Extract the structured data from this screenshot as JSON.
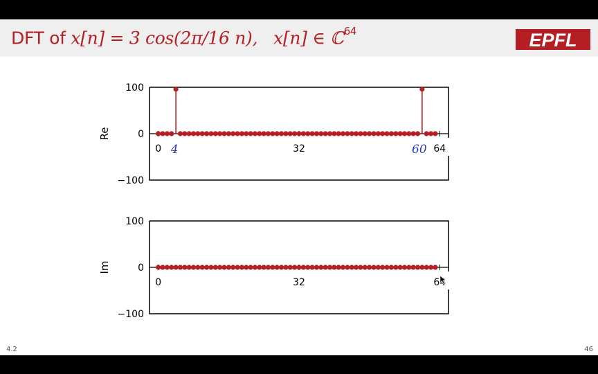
{
  "slide": {
    "title_prefix": "DFT of ",
    "title_signal": "x[n] = 3 cos(2π/16 n),",
    "title_domain_a": "x[n] ∈ ℂ",
    "title_domain_sup": "64",
    "footer_left": "4.2",
    "footer_right": "46",
    "logo_text": "EPFL"
  },
  "colors": {
    "accent": "#b51f24",
    "title_bar": "#efefef",
    "annotation": "#2b3fb5"
  },
  "chart_data": [
    {
      "type": "stem",
      "name": "Re",
      "ylabel": "Re",
      "xlim": [
        -2,
        66
      ],
      "ylim": [
        -100,
        100
      ],
      "yticks": [
        "100",
        "0",
        "−100"
      ],
      "xticks": [
        "0",
        "32",
        "64"
      ],
      "n": [
        0,
        1,
        2,
        3,
        4,
        5,
        6,
        7,
        8,
        9,
        10,
        11,
        12,
        13,
        14,
        15,
        16,
        17,
        18,
        19,
        20,
        21,
        22,
        23,
        24,
        25,
        26,
        27,
        28,
        29,
        30,
        31,
        32,
        33,
        34,
        35,
        36,
        37,
        38,
        39,
        40,
        41,
        42,
        43,
        44,
        45,
        46,
        47,
        48,
        49,
        50,
        51,
        52,
        53,
        54,
        55,
        56,
        57,
        58,
        59,
        60,
        61,
        62,
        63
      ],
      "values": [
        0,
        0,
        0,
        0,
        96,
        0,
        0,
        0,
        0,
        0,
        0,
        0,
        0,
        0,
        0,
        0,
        0,
        0,
        0,
        0,
        0,
        0,
        0,
        0,
        0,
        0,
        0,
        0,
        0,
        0,
        0,
        0,
        0,
        0,
        0,
        0,
        0,
        0,
        0,
        0,
        0,
        0,
        0,
        0,
        0,
        0,
        0,
        0,
        0,
        0,
        0,
        0,
        0,
        0,
        0,
        0,
        0,
        0,
        0,
        0,
        96,
        0,
        0,
        0
      ],
      "annotations": [
        "4",
        "60"
      ]
    },
    {
      "type": "stem",
      "name": "Im",
      "ylabel": "Im",
      "xlim": [
        -2,
        66
      ],
      "ylim": [
        -100,
        100
      ],
      "yticks": [
        "100",
        "0",
        "−100"
      ],
      "xticks": [
        "0",
        "32",
        "64"
      ],
      "n": [
        0,
        1,
        2,
        3,
        4,
        5,
        6,
        7,
        8,
        9,
        10,
        11,
        12,
        13,
        14,
        15,
        16,
        17,
        18,
        19,
        20,
        21,
        22,
        23,
        24,
        25,
        26,
        27,
        28,
        29,
        30,
        31,
        32,
        33,
        34,
        35,
        36,
        37,
        38,
        39,
        40,
        41,
        42,
        43,
        44,
        45,
        46,
        47,
        48,
        49,
        50,
        51,
        52,
        53,
        54,
        55,
        56,
        57,
        58,
        59,
        60,
        61,
        62,
        63
      ],
      "values": [
        0,
        0,
        0,
        0,
        0,
        0,
        0,
        0,
        0,
        0,
        0,
        0,
        0,
        0,
        0,
        0,
        0,
        0,
        0,
        0,
        0,
        0,
        0,
        0,
        0,
        0,
        0,
        0,
        0,
        0,
        0,
        0,
        0,
        0,
        0,
        0,
        0,
        0,
        0,
        0,
        0,
        0,
        0,
        0,
        0,
        0,
        0,
        0,
        0,
        0,
        0,
        0,
        0,
        0,
        0,
        0,
        0,
        0,
        0,
        0,
        0,
        0,
        0,
        0
      ],
      "annotations": []
    }
  ]
}
